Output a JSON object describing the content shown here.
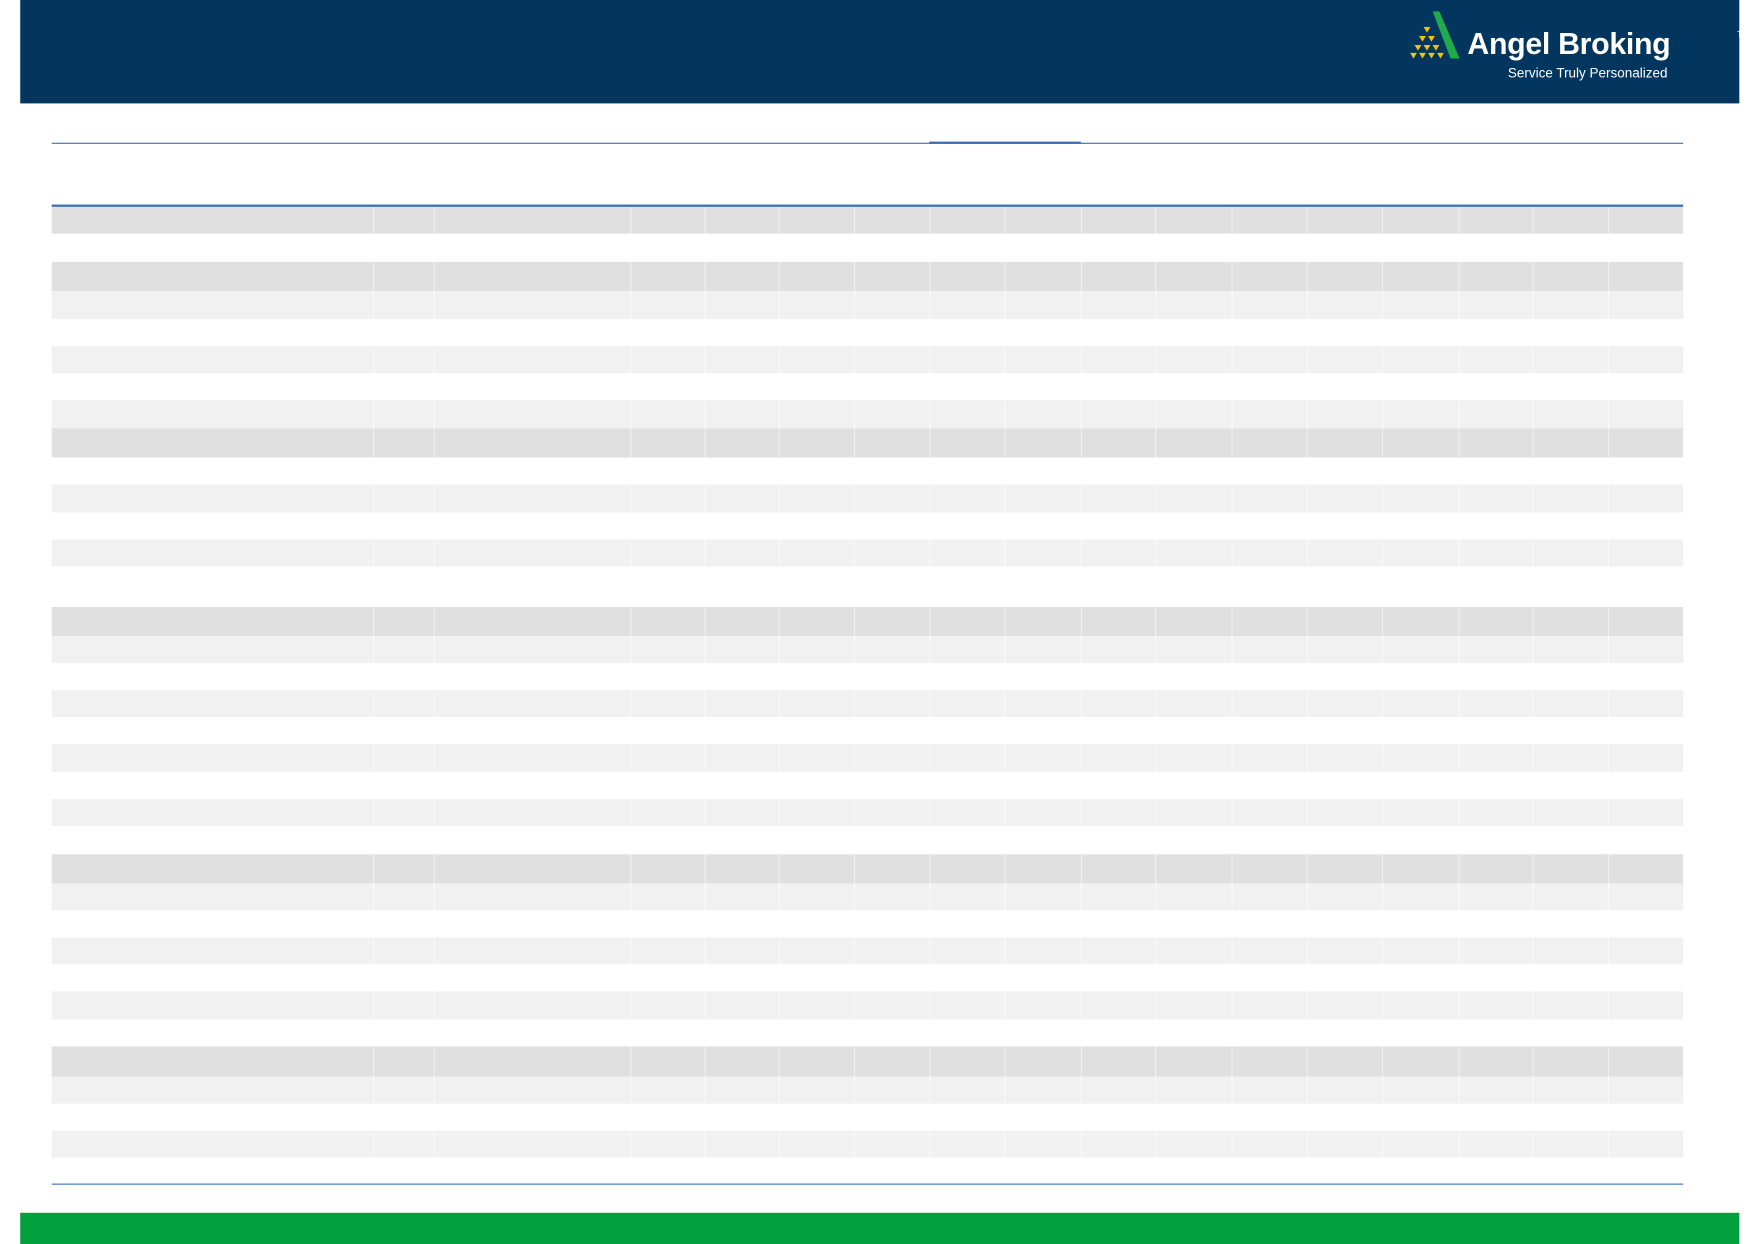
{
  "header": {
    "brand": {
      "name": "Angel Broking",
      "trademark": "TM",
      "tagline": "Service Truly Personalized",
      "colors": {
        "background": "#03365e",
        "logo_green": "#1faa4b",
        "logo_gold": "#f5c400"
      }
    }
  },
  "table": {
    "rule_color": "#3b6fb6",
    "row_colors": {
      "section": "#e0e0e0",
      "stripe": "#f1f1f1",
      "plain": "#ffffff"
    }
  },
  "footer": {
    "color": "#00a03c"
  }
}
